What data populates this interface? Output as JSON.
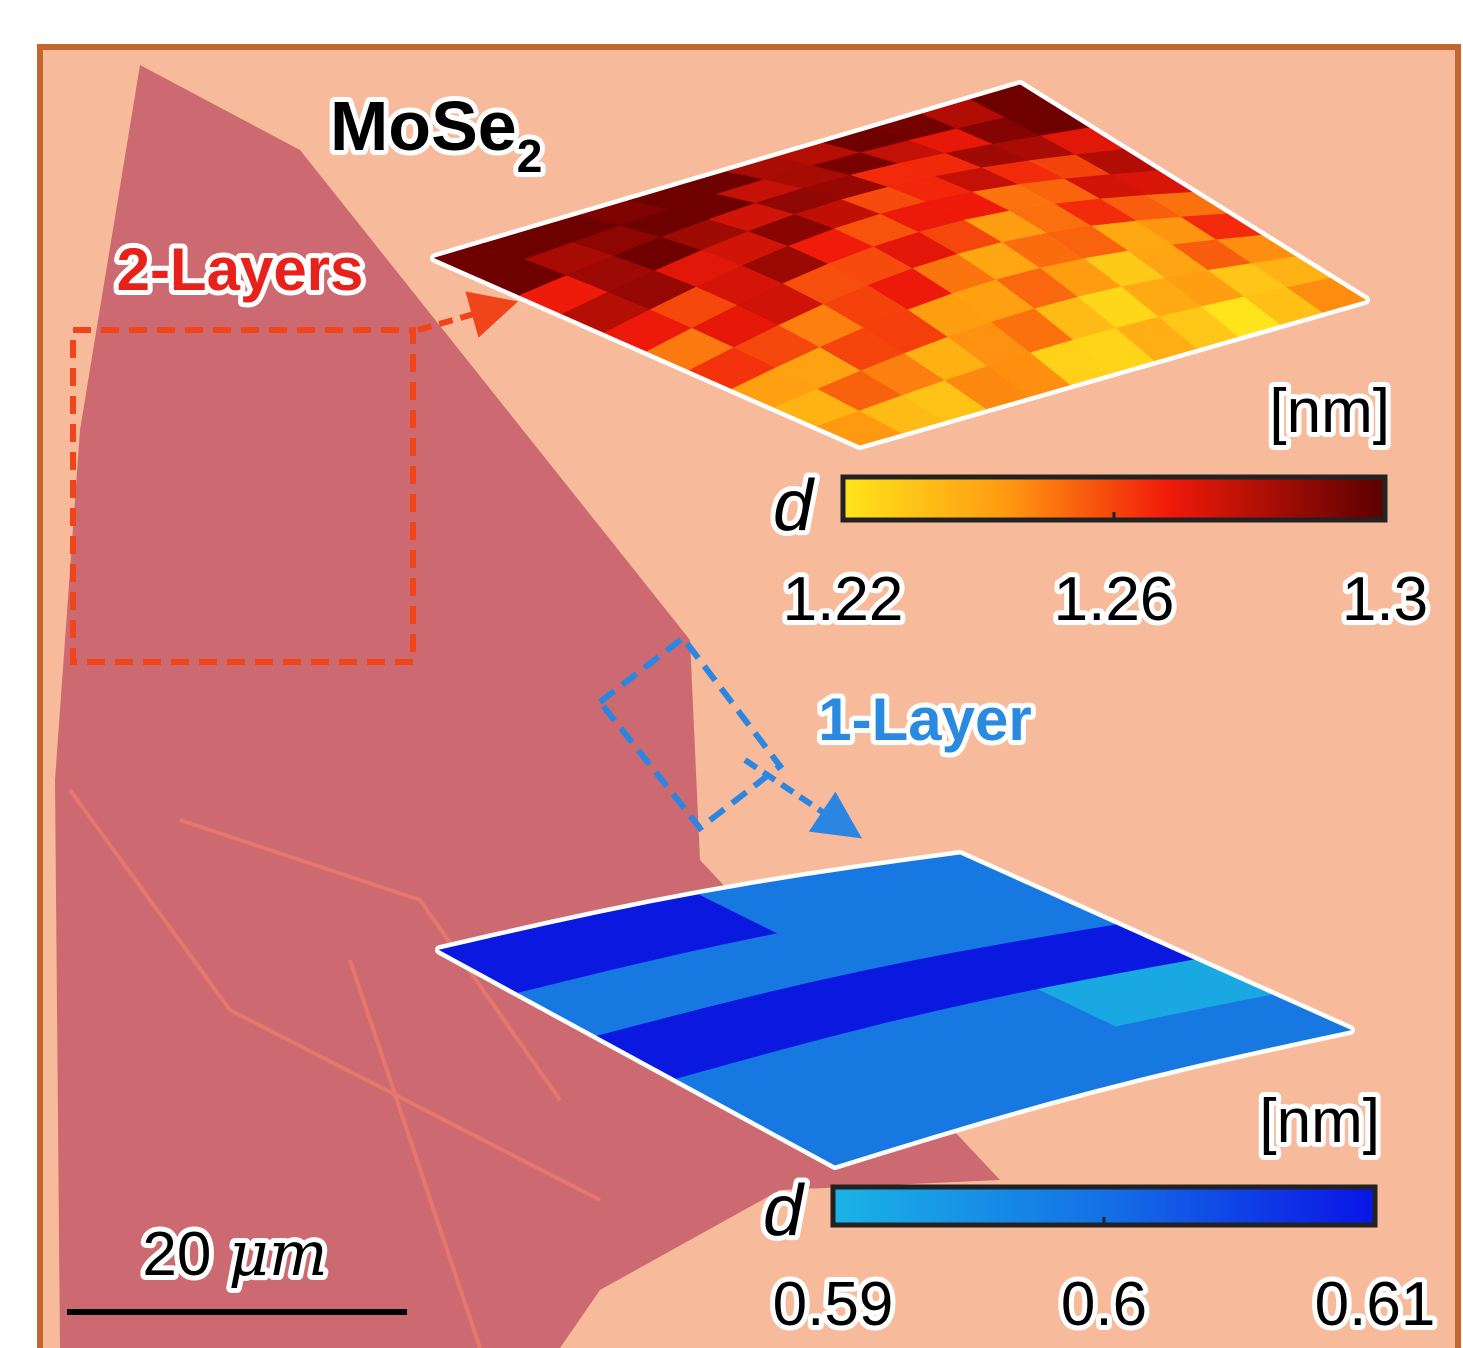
{
  "title": {
    "text": "MoSe",
    "subscript": "2"
  },
  "bilayer": {
    "label": "2-Layers",
    "colorbar": {
      "symbol": "d",
      "unit": "[nm]",
      "ticks": [
        1.22,
        1.26,
        1.3
      ]
    }
  },
  "monolayer": {
    "label": "1-Layer",
    "colorbar": {
      "symbol": "d",
      "unit": "[nm]",
      "ticks": [
        0.59,
        0.6,
        0.61
      ]
    }
  },
  "scale_bar": {
    "value": "20",
    "unit": "μm"
  }
}
